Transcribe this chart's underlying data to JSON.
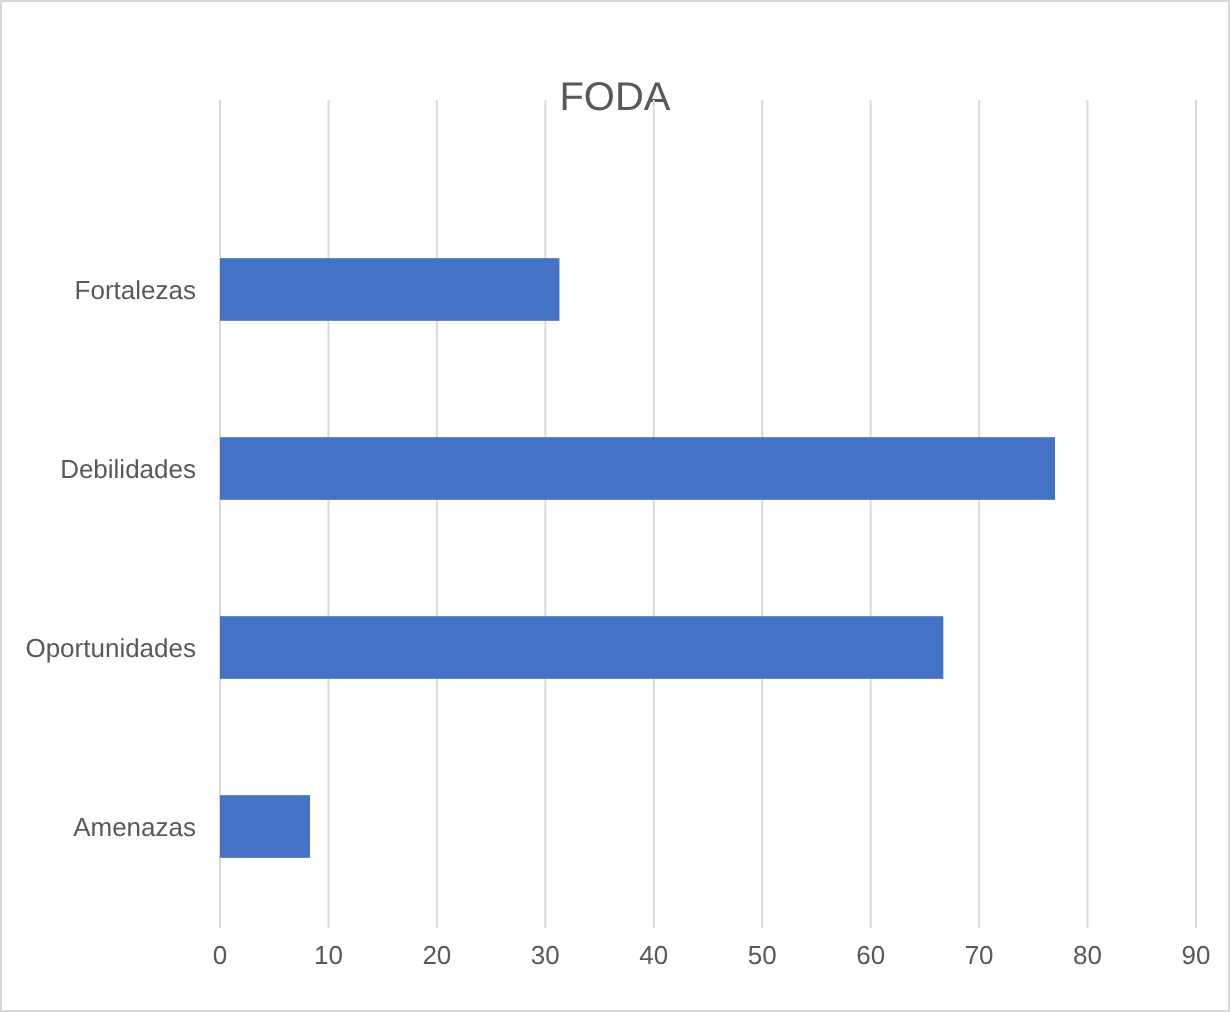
{
  "chart_data": {
    "type": "bar",
    "title": "FODA",
    "orientation": "horizontal",
    "categories": [
      "Fortalezas",
      "Debilidades",
      "Oportunidades",
      "Amenazas"
    ],
    "values": [
      31.3,
      77,
      66.7,
      8.3
    ],
    "color": "#4472c4",
    "xlim": [
      0,
      90
    ],
    "xticks": [
      0,
      10,
      20,
      30,
      40,
      50,
      60,
      70,
      80,
      90
    ],
    "grid": "x"
  }
}
